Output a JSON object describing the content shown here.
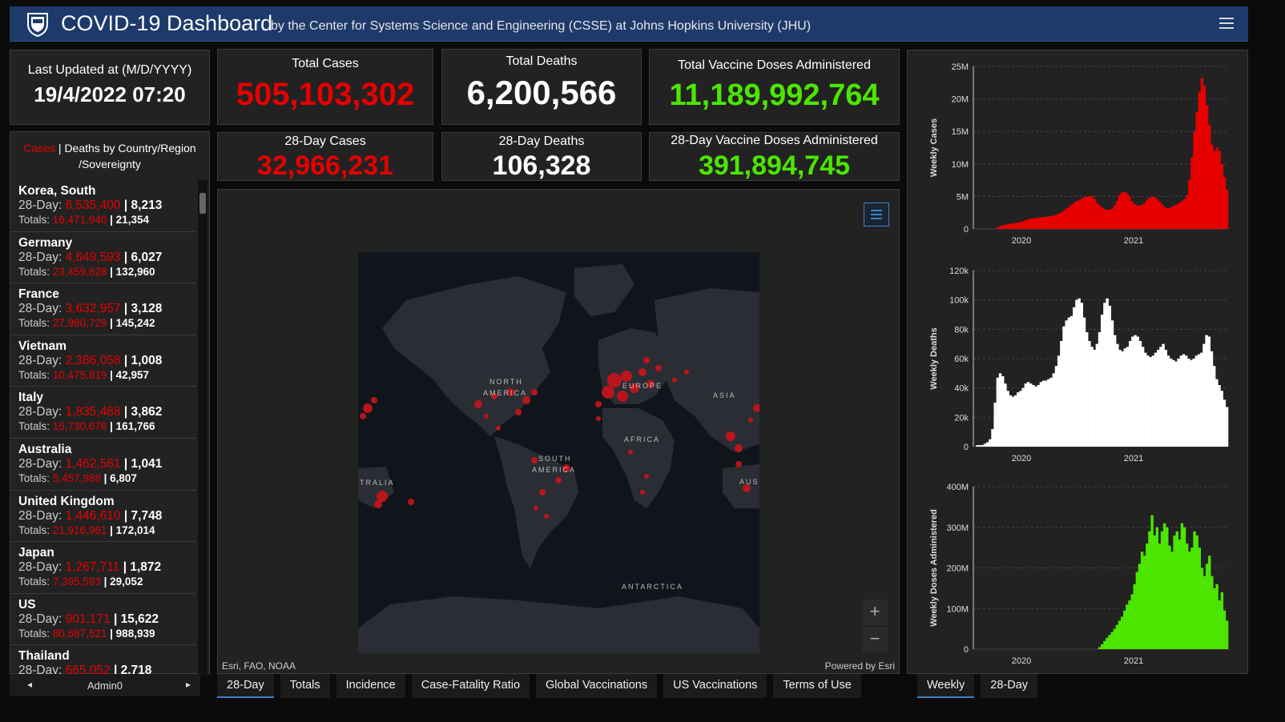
{
  "header": {
    "title": "COVID-19 Dashboard",
    "subtitle": "by the Center for Systems Science and Engineering (CSSE) at Johns Hopkins University (JHU)"
  },
  "last_updated": {
    "label": "Last Updated at (M/D/YYYY)",
    "value": "19/4/2022 07:20"
  },
  "totals": {
    "cases_label": "Total Cases",
    "cases": "505,103,302",
    "deaths_label": "Total Deaths",
    "deaths": "6,200,566",
    "vaccine_label": "Total Vaccine Doses Administered",
    "vaccine": "11,189,992,764",
    "cases28_label": "28-Day Cases",
    "cases28": "32,966,231",
    "deaths28_label": "28-Day Deaths",
    "deaths28": "106,328",
    "vaccine28_label": "28-Day Vaccine Doses Administered",
    "vaccine28": "391,894,745"
  },
  "list": {
    "head_cases": "Cases",
    "head_rest": " | Deaths by Country/Region /Sovereignty",
    "rows": [
      {
        "name": "Korea, South",
        "d28_cases": "6,535,400",
        "d28_deaths": "8,213",
        "tot_cases": "16,471,940",
        "tot_deaths": "21,354"
      },
      {
        "name": "Germany",
        "d28_cases": "4,649,593",
        "d28_deaths": "6,027",
        "tot_cases": "23,459,628",
        "tot_deaths": "132,960"
      },
      {
        "name": "France",
        "d28_cases": "3,632,957",
        "d28_deaths": "3,128",
        "tot_cases": "27,980,729",
        "tot_deaths": "145,242"
      },
      {
        "name": "Vietnam",
        "d28_cases": "2,386,058",
        "d28_deaths": "1,008",
        "tot_cases": "10,475,819",
        "tot_deaths": "42,957"
      },
      {
        "name": "Italy",
        "d28_cases": "1,835,488",
        "d28_deaths": "3,862",
        "tot_cases": "15,730,676",
        "tot_deaths": "161,766"
      },
      {
        "name": "Australia",
        "d28_cases": "1,462,581",
        "d28_deaths": "1,041",
        "tot_cases": "5,457,988",
        "tot_deaths": "6,807"
      },
      {
        "name": "United Kingdom",
        "d28_cases": "1,446,610",
        "d28_deaths": "7,748",
        "tot_cases": "21,916,961",
        "tot_deaths": "172,014"
      },
      {
        "name": "Japan",
        "d28_cases": "1,267,711",
        "d28_deaths": "1,872",
        "tot_cases": "7,395,593",
        "tot_deaths": "29,052"
      },
      {
        "name": "US",
        "d28_cases": "901,171",
        "d28_deaths": "15,622",
        "tot_cases": "80,687,521",
        "tot_deaths": "988,939"
      },
      {
        "name": "Thailand",
        "d28_cases": "665,052",
        "d28_deaths": "2,718",
        "tot_cases": "",
        "tot_deaths": ""
      }
    ],
    "prefix_28": "28-Day: ",
    "prefix_tot": "Totals: ",
    "pager_label": "Admin0",
    "pager_prev": "◂",
    "pager_next": "▸"
  },
  "map": {
    "attribution_left": "Esri, FAO, NOAA",
    "attribution_right": "Powered by Esri",
    "zoom_in": "+",
    "zoom_out": "−",
    "labels": {
      "north_america_1": "NORTH",
      "north_america_2": "AMERICA",
      "europe": "EUROPE",
      "asia": "ASIA",
      "africa": "AFRICA",
      "south_america_1": "SOUTH",
      "south_america_2": "AMERICA",
      "australia_left": "TRALIA",
      "australia_right": "AUS",
      "antarctica": "ANTARCTICA"
    }
  },
  "tabs": [
    "28-Day",
    "Totals",
    "Incidence",
    "Case-Fatality Ratio",
    "Global Vaccinations",
    "US Vaccinations",
    "Terms of Use"
  ],
  "chart_tabs": [
    "Weekly",
    "28-Day"
  ],
  "colors": {
    "cases": "#e60000",
    "deaths": "#ffffff",
    "vaccine": "#4ce600",
    "header": "#1d3a6a"
  },
  "chart_data": [
    {
      "type": "bar",
      "ylabel": "Weekly Cases",
      "yticks": [
        "0",
        "5M",
        "10M",
        "15M",
        "20M",
        "25M"
      ],
      "xticks": [
        "2020",
        "2021"
      ],
      "ylim": [
        0,
        25000000
      ],
      "color": "#e60000",
      "values": [
        0,
        0,
        0,
        0,
        0,
        0,
        0,
        0,
        0.05,
        0.2,
        0.4,
        0.5,
        0.6,
        0.7,
        0.8,
        0.85,
        0.9,
        0.95,
        1.0,
        1.1,
        1.3,
        1.45,
        1.55,
        1.6,
        1.65,
        1.7,
        1.75,
        1.8,
        1.85,
        1.9,
        1.95,
        2.0,
        2.1,
        2.2,
        2.4,
        2.6,
        2.9,
        3.2,
        3.5,
        3.8,
        4.1,
        4.3,
        4.5,
        4.7,
        4.9,
        5.0,
        5.1,
        5.0,
        4.6,
        4.0,
        3.6,
        3.3,
        3.0,
        2.9,
        2.95,
        3.1,
        3.6,
        4.3,
        5.2,
        5.6,
        5.7,
        5.5,
        5.0,
        4.3,
        3.8,
        3.6,
        3.6,
        3.7,
        4.0,
        4.5,
        4.8,
        5.0,
        4.9,
        4.6,
        4.2,
        3.8,
        3.4,
        3.2,
        3.2,
        3.4,
        3.6,
        3.8,
        4.0,
        4.3,
        4.6,
        5.2,
        7.5,
        11,
        15,
        18,
        21,
        23.2,
        22,
        19,
        16,
        13,
        12,
        12.5,
        12,
        10,
        8,
        6
      ]
    },
    {
      "type": "bar",
      "ylabel": "Weekly Deaths",
      "yticks": [
        "0",
        "20k",
        "40k",
        "60k",
        "80k",
        "100k",
        "120k"
      ],
      "xticks": [
        "2020",
        "2021"
      ],
      "ylim": [
        0,
        120000
      ],
      "color": "#ffffff",
      "values": [
        0,
        1,
        1,
        1,
        2,
        3,
        5,
        12,
        30,
        47,
        50,
        48,
        43,
        38,
        35,
        34,
        35,
        37,
        38,
        40,
        43,
        44,
        43,
        42,
        41,
        42,
        44,
        45,
        45,
        46,
        47,
        50,
        55,
        62,
        72,
        82,
        86,
        88,
        89,
        95,
        100,
        101,
        98,
        88,
        78,
        72,
        68,
        66,
        70,
        78,
        90,
        98,
        101,
        96,
        86,
        76,
        70,
        66,
        65,
        67,
        68,
        72,
        75,
        76,
        75,
        72,
        68,
        64,
        62,
        61,
        62,
        64,
        66,
        68,
        70,
        66,
        62,
        60,
        59,
        58,
        60,
        62,
        63,
        62,
        60,
        59,
        60,
        62,
        63,
        64,
        70,
        76,
        75,
        65,
        55,
        46,
        42,
        38,
        32,
        27
      ]
    },
    {
      "type": "bar",
      "ylabel": "Weekly Doses Administered",
      "yticks": [
        "0",
        "100M",
        "200M",
        "300M",
        "400M"
      ],
      "xticks": [
        "2020",
        "2021"
      ],
      "ylim": [
        0,
        400000000
      ],
      "color": "#4ce600",
      "values": [
        0,
        0,
        0,
        0,
        0,
        0,
        0,
        0,
        0,
        0,
        0,
        0,
        0,
        0,
        0,
        0,
        0,
        0,
        0,
        0,
        0,
        0,
        0,
        0,
        0,
        0,
        0,
        0,
        0,
        0,
        0,
        0,
        0,
        0,
        0,
        0,
        0,
        0,
        0,
        0,
        0,
        0,
        0,
        0,
        0,
        0,
        0,
        0,
        0,
        0,
        5,
        12,
        20,
        28,
        35,
        42,
        50,
        60,
        70,
        80,
        95,
        110,
        120,
        135,
        160,
        190,
        210,
        240,
        230,
        260,
        290,
        330,
        280,
        300,
        260,
        290,
        310,
        300,
        255,
        240,
        280,
        290,
        270,
        310,
        300,
        260,
        240,
        250,
        290,
        280,
        250,
        200,
        180,
        210,
        230,
        180,
        150,
        160,
        120,
        140,
        95,
        70
      ]
    }
  ]
}
